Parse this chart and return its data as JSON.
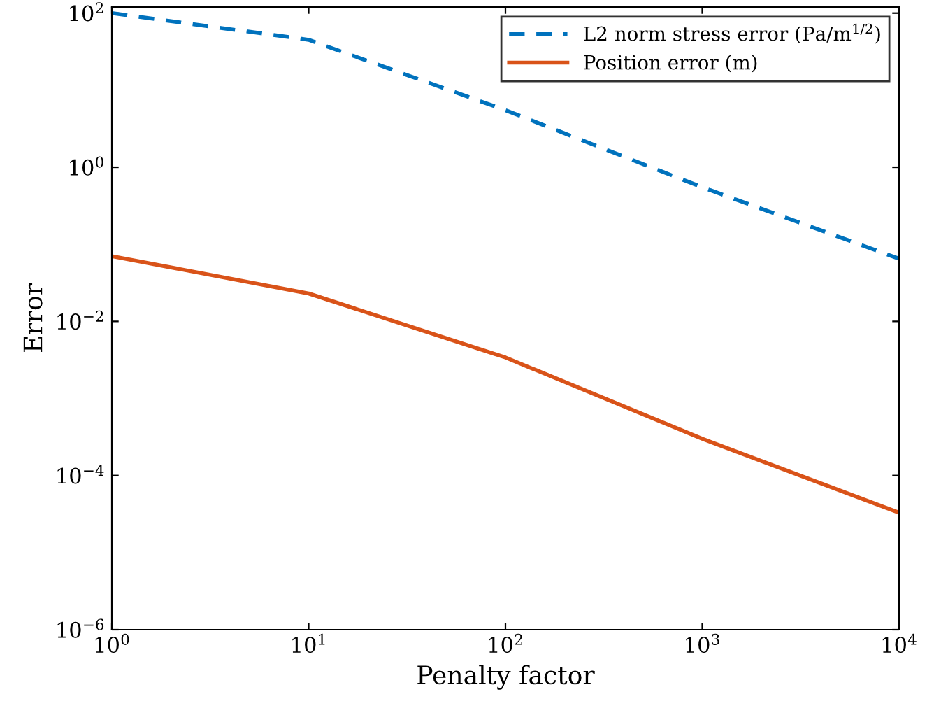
{
  "chart_data": {
    "type": "line",
    "xlabel": "Penalty factor",
    "ylabel": "Error",
    "log": "xy",
    "grid": false,
    "legend": "top right",
    "x": [
      1,
      10,
      100,
      1000,
      10000
    ],
    "series": [
      {
        "name": "L2 norm stress error (Pa/m$^{1/2}$)",
        "color": "#0072bd",
        "line_style": "dashed",
        "values": [
          100,
          45,
          5.5,
          0.55,
          0.065
        ]
      },
      {
        "name": "Position error (m)",
        "color": "#d95319",
        "line_style": "solid",
        "values": [
          0.07,
          0.023,
          0.0034,
          0.0003,
          3.3e-05
        ]
      }
    ],
    "xlim": [
      1,
      10000
    ],
    "ylim": [
      1e-06,
      120
    ],
    "xticks": [
      {
        "value": 1,
        "label": "10$^{0}$"
      },
      {
        "value": 10,
        "label": "10$^{1}$"
      },
      {
        "value": 100,
        "label": "10$^{2}$"
      },
      {
        "value": 1000,
        "label": "10$^{3}$"
      },
      {
        "value": 10000,
        "label": "10$^{4}$"
      }
    ],
    "yticks": [
      {
        "value": 1e-06,
        "label": "10$^{−6}$"
      },
      {
        "value": 0.0001,
        "label": "10$^{−4}$"
      },
      {
        "value": 0.01,
        "label": "10$^{−2}$"
      },
      {
        "value": 1,
        "label": "10$^{0}$"
      },
      {
        "value": 100,
        "label": "10$^{2}$"
      }
    ]
  }
}
